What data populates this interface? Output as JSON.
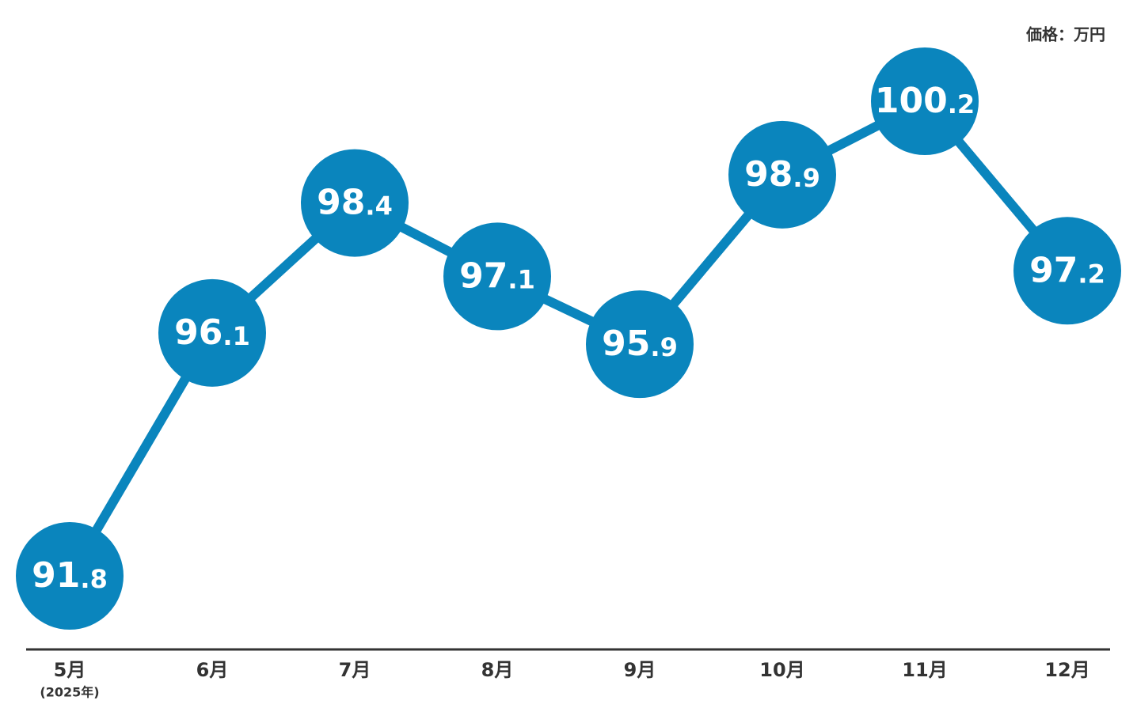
{
  "chart_data": {
    "type": "line",
    "unit_label": "価格：万円",
    "categories": [
      "5月",
      "6月",
      "7月",
      "8月",
      "9月",
      "10月",
      "11月",
      "12月"
    ],
    "category_note": "(2025年)",
    "series": [
      {
        "name": "価格",
        "color": "#0a85bd",
        "values": [
          91.8,
          96.1,
          98.4,
          97.1,
          95.9,
          98.9,
          100.2,
          97.2
        ]
      }
    ]
  }
}
